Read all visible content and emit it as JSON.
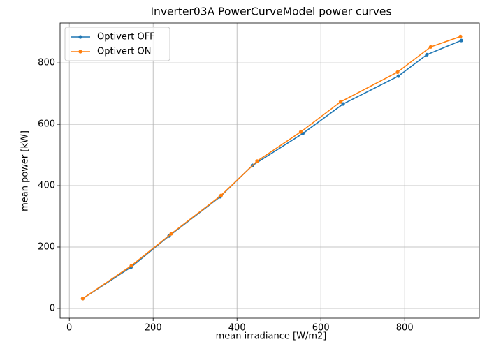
{
  "chart_data": {
    "type": "line",
    "title": "Inverter03A PowerCurveModel power curves",
    "xlabel": "mean irradiance [W/m2]",
    "ylabel": "mean power [kW]",
    "series": [
      {
        "name": "Optivert OFF",
        "color": "#1f77b4",
        "x": [
          32,
          147,
          238,
          360,
          437,
          557,
          653,
          785,
          853,
          935
        ],
        "values": [
          32,
          134,
          236,
          364,
          466,
          570,
          666,
          757,
          827,
          873
        ]
      },
      {
        "name": "Optivert ON",
        "color": "#ff7f0e",
        "x": [
          32,
          148,
          243,
          362,
          448,
          552,
          647,
          783,
          862,
          933
        ],
        "values": [
          32,
          139,
          243,
          368,
          480,
          575,
          673,
          770,
          852,
          886
        ]
      }
    ],
    "xlim": [
      -22,
      978
    ],
    "ylim": [
      -32,
      930
    ],
    "xticks": [
      0,
      200,
      400,
      600,
      800
    ],
    "yticks": [
      0,
      200,
      400,
      600,
      800
    ],
    "grid": true,
    "legend": "upper left"
  }
}
